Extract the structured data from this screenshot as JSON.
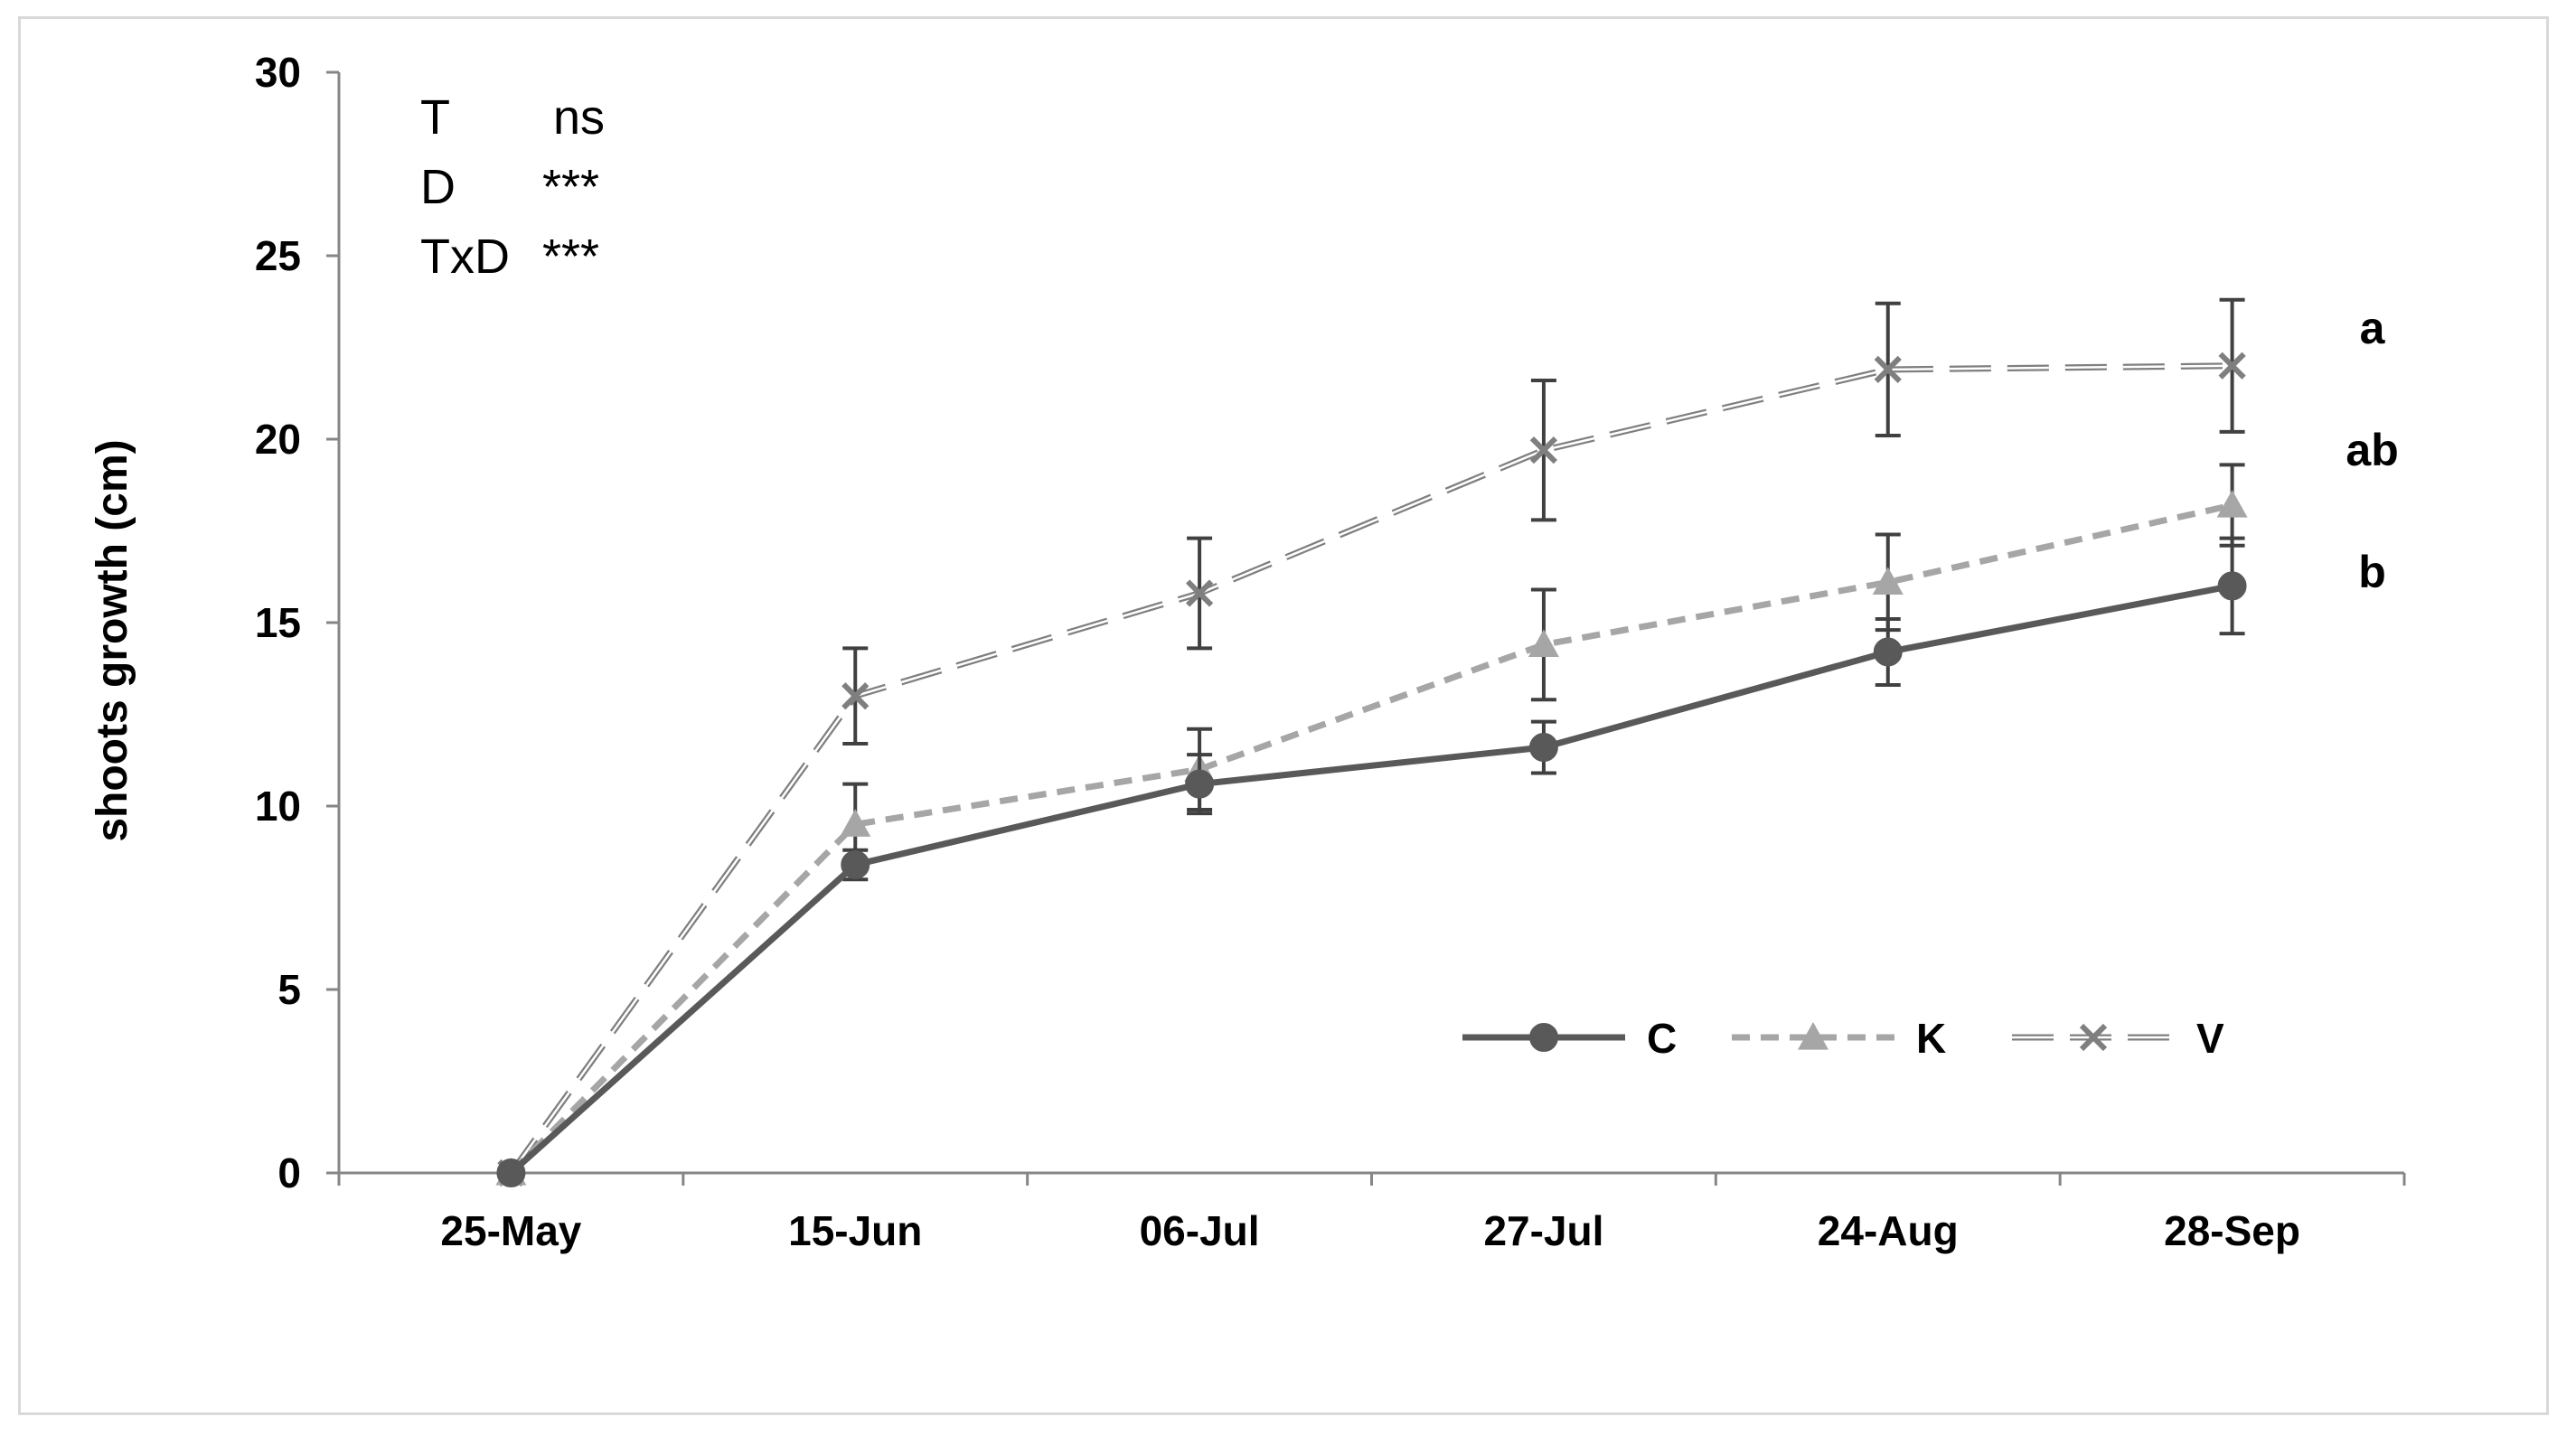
{
  "chart_data": {
    "type": "line",
    "title": "",
    "xlabel": "",
    "ylabel": "shoots growth (cm)",
    "ylim": [
      0,
      30
    ],
    "yticks": [
      "0",
      "5",
      "10",
      "15",
      "20",
      "25",
      "30"
    ],
    "ytick_values": [
      0,
      5,
      10,
      15,
      20,
      25,
      30
    ],
    "categories": [
      "25-May",
      "15-Jun",
      "06-Jul",
      "27-Jul",
      "24-Aug",
      "28-Sep"
    ],
    "grid": false,
    "legend_position": "bottom-right",
    "series": [
      {
        "name": "C",
        "values": [
          0,
          8.4,
          10.6,
          11.6,
          14.2,
          16.0
        ],
        "errors": [
          0,
          0.4,
          0.8,
          0.7,
          0.9,
          1.3
        ],
        "color": "#595959",
        "line_style": "solid",
        "marker": "circle",
        "significance_letter": "b"
      },
      {
        "name": "K",
        "values": [
          0,
          9.5,
          11.0,
          14.4,
          16.1,
          18.2
        ],
        "errors": [
          0,
          1.1,
          1.1,
          1.5,
          1.3,
          1.1
        ],
        "color": "#a6a6a6",
        "line_style": "dashed",
        "marker": "triangle",
        "significance_letter": "ab"
      },
      {
        "name": "V",
        "values": [
          0,
          13.0,
          15.8,
          19.7,
          21.9,
          22.0
        ],
        "errors": [
          0,
          1.3,
          1.5,
          1.9,
          1.8,
          1.8
        ],
        "color": "#7f7f7f",
        "line_style": "double-dashed",
        "marker": "x",
        "significance_letter": "a"
      }
    ],
    "annotations": {
      "stats": [
        {
          "factor": "T",
          "significance": "ns"
        },
        {
          "factor": "D",
          "significance": "***"
        },
        {
          "factor": "TxD",
          "significance": "***"
        }
      ]
    }
  }
}
